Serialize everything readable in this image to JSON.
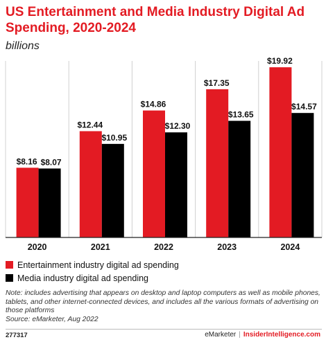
{
  "chart_data": {
    "type": "bar",
    "title": "US Entertainment and Media Industry Digital Ad Spending, 2020-2024",
    "subtitle": "billions",
    "categories": [
      "2020",
      "2021",
      "2022",
      "2023",
      "2024"
    ],
    "series": [
      {
        "name": "Entertainment industry digital ad spending",
        "color": "#e31b23",
        "values": [
          8.16,
          12.44,
          14.86,
          17.35,
          19.92
        ],
        "labels": [
          "$8.16",
          "$12.44",
          "$14.86",
          "$17.35",
          "$19.92"
        ]
      },
      {
        "name": "Media industry digital ad spending",
        "color": "#000000",
        "values": [
          8.07,
          10.95,
          12.3,
          13.65,
          14.57
        ],
        "labels": [
          "$8.07",
          "$10.95",
          "$12.30",
          "$13.65",
          "$14.57"
        ]
      }
    ],
    "ylim": [
      0,
      20.5
    ],
    "grid": false,
    "legend": "bottom"
  },
  "note": "Note: includes advertising that appears on desktop and laptop computers as well as mobile phones, tablets, and other internet-connected devices, and includes all the various formats of advertising on those platforms",
  "source": "Source: eMarketer, Aug 2022",
  "footer": {
    "id": "277317",
    "brand": "eMarketer",
    "separator": "|",
    "brand2": "InsiderIntelligence.com"
  }
}
